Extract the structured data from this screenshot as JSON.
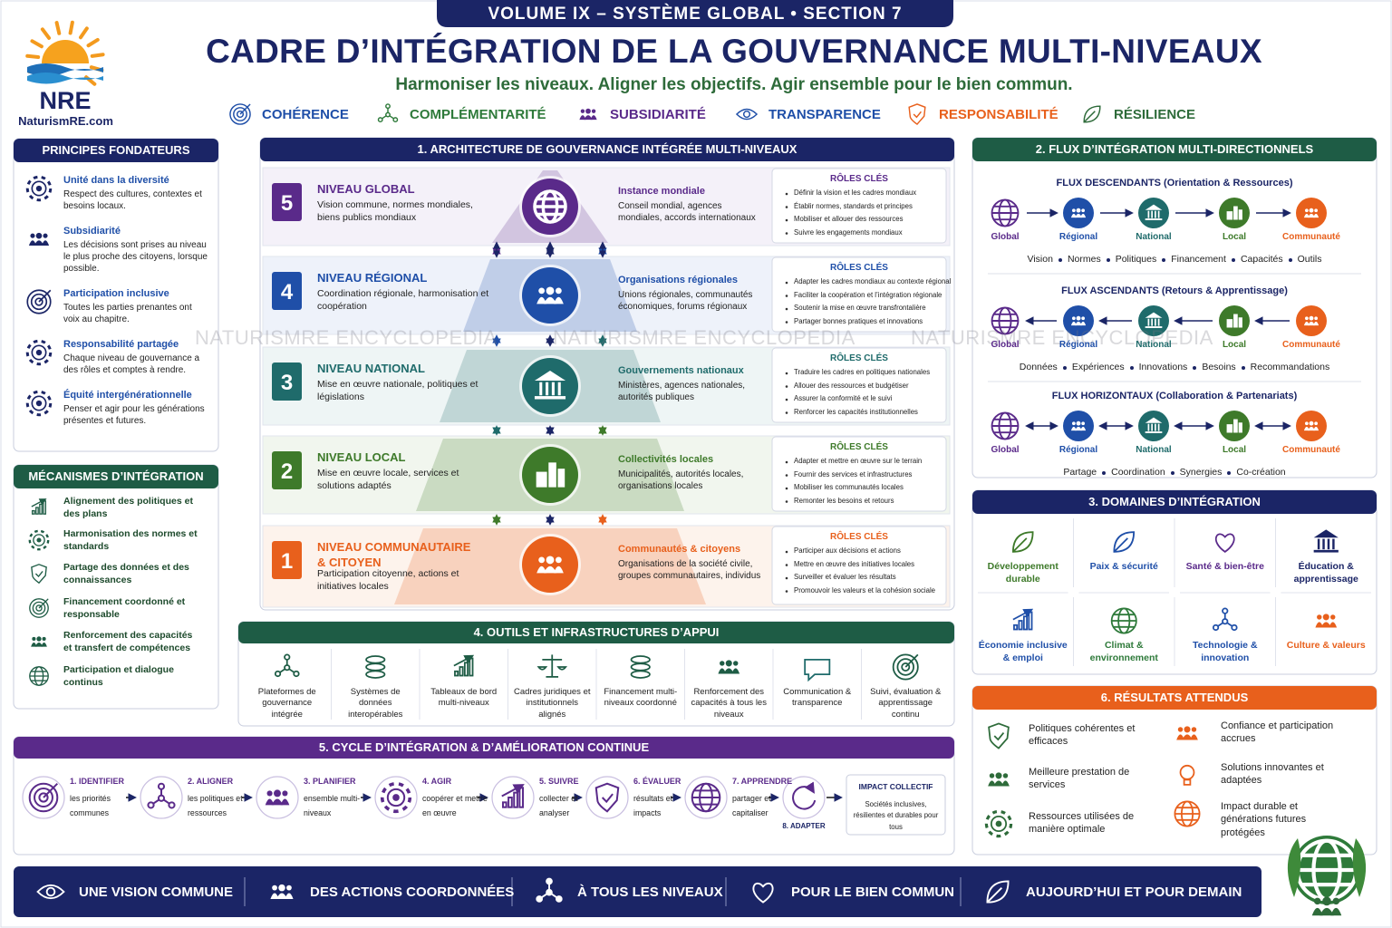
{
  "header": {
    "banner": "VOLUME IX – SYSTÈME GLOBAL • SECTION 7",
    "title": "CADRE D’INTÉGRATION DE LA GOUVERNANCE MULTI-NIVEAUX",
    "subtitle": "Harmoniser les niveaux. Aligner les objectifs. Agir ensemble pour le bien commun.",
    "logo": {
      "name": "NRE",
      "site": "NaturismRE.com"
    },
    "values": [
      "COHÉRENCE",
      "COMPLÉMENTARITÉ",
      "SUBSIDIARITÉ",
      "TRANSPARENCE",
      "RESPONSABILITÉ",
      "RÉSILIENCE"
    ]
  },
  "watermark": [
    "NATURISMRE ENCYCLOPEDIA",
    "NATURISMRE ENCYCLOPEDIA",
    "NATURISMRE ENCYCLOPEDIA"
  ],
  "principles": {
    "title": "PRINCIPES FONDATEURS",
    "items": [
      {
        "title": "Unité dans la diversité",
        "text": "Respect des cultures, contextes et besoins locaux."
      },
      {
        "title": "Subsidiarité",
        "text": "Les décisions sont prises au niveau le plus proche des citoyens, lorsque possible."
      },
      {
        "title": "Participation inclusive",
        "text": "Toutes les parties prenantes ont voix au chapitre."
      },
      {
        "title": "Responsabilité partagée",
        "text": "Chaque niveau de gouvernance a des rôles et comptes à rendre."
      },
      {
        "title": "Équité intergénérationnelle",
        "text": "Penser et agir pour les générations présentes et futures."
      }
    ]
  },
  "mechanisms": {
    "title": "MÉCANISMES D’INTÉGRATION",
    "items": [
      "Alignement des politiques et des plans",
      "Harmonisation des normes et standards",
      "Partage des données et des connaissances",
      "Financement coordonné et responsable",
      "Renforcement des capacités et transfert de compétences",
      "Participation et dialogue continus"
    ]
  },
  "section1": {
    "title": "1. ARCHITECTURE DE GOUVERNANCE INTÉGRÉE MULTI-NIVEAUX",
    "roles_heading": "RÔLES CLÉS",
    "levels": [
      {
        "number": 5,
        "name": "NIVEAU GLOBAL",
        "text": "Vision commune, normes mondiales, biens publics mondiaux",
        "actor": "Instance mondiale",
        "actor_text": "Conseil mondial, agences mondiales, accords internationaux",
        "roles": [
          "Définir la vision et les cadres mondiaux",
          "Établir normes, standards et principes",
          "Mobiliser et allouer des ressources",
          "Suivre les engagements mondiaux"
        ]
      },
      {
        "number": 4,
        "name": "NIVEAU RÉGIONAL",
        "text": "Coordination régionale, harmonisation et coopération",
        "actor": "Organisations régionales",
        "actor_text": "Unions régionales, communautés économiques, forums régionaux",
        "roles": [
          "Adapter les cadres mondiaux au contexte régional",
          "Faciliter la coopération et l’intégration régionale",
          "Soutenir la mise en œuvre transfrontalière",
          "Partager bonnes pratiques et innovations"
        ]
      },
      {
        "number": 3,
        "name": "NIVEAU NATIONAL",
        "text": "Mise en œuvre nationale, politiques et législations",
        "actor": "Gouvernements nationaux",
        "actor_text": "Ministères, agences nationales, autorités publiques",
        "roles": [
          "Traduire les cadres en politiques nationales",
          "Allouer des ressources et budgétiser",
          "Assurer la conformité et le suivi",
          "Renforcer les capacités institutionnelles"
        ]
      },
      {
        "number": 2,
        "name": "NIVEAU LOCAL",
        "text": "Mise en œuvre locale, services et solutions adaptés",
        "actor": "Collectivités locales",
        "actor_text": "Municipalités, autorités locales, organisations locales",
        "roles": [
          "Adapter et mettre en œuvre sur le terrain",
          "Fournir des services et infrastructures",
          "Mobiliser les communautés locales",
          "Remonter les besoins et retours"
        ]
      },
      {
        "number": 1,
        "name": "NIVEAU COMMUNAUTAIRE & CITOYEN",
        "text": "Participation citoyenne, actions et initiatives locales",
        "actor": "Communautés & citoyens",
        "actor_text": "Organisations de la société civile, groupes communautaires, individus",
        "roles": [
          "Participer aux décisions et actions",
          "Mettre en œuvre des initiatives locales",
          "Surveiller et évaluer les résultats",
          "Promouvoir les valeurs et la cohésion sociale"
        ]
      }
    ]
  },
  "section2": {
    "title": "2. FLUX D’INTÉGRATION MULTI-DIRECTIONNELS",
    "nodes": [
      "Global",
      "Régional",
      "National",
      "Local",
      "Communauté"
    ],
    "flows": [
      {
        "title": "FLUX DESCENDANTS (Orientation & Ressources)",
        "items": [
          "Vision",
          "Normes",
          "Politiques",
          "Financement",
          "Capacités",
          "Outils"
        ]
      },
      {
        "title": "FLUX ASCENDANTS (Retours & Apprentissage)",
        "items": [
          "Données",
          "Expériences",
          "Innovations",
          "Besoins",
          "Recommandations"
        ]
      },
      {
        "title": "FLUX HORIZONTAUX (Collaboration & Partenariats)",
        "items": [
          "Partage",
          "Coordination",
          "Synergies",
          "Co-création"
        ]
      }
    ]
  },
  "section3": {
    "title": "3. DOMAINES D’INTÉGRATION",
    "domains": [
      "Développement durable",
      "Paix & sécurité",
      "Santé & bien-être",
      "Éducation & apprentissage",
      "Économie inclusive & emploi",
      "Climat & environnement",
      "Technologie & innovation",
      "Culture & valeurs"
    ]
  },
  "section4": {
    "title": "4. OUTILS ET INFRASTRUCTURES D’APPUI",
    "tools": [
      "Plateformes de gouvernance intégrée",
      "Systèmes de données interopérables",
      "Tableaux de bord multi-niveaux",
      "Cadres juridiques et institutionnels alignés",
      "Financement multi-niveaux coordonné",
      "Renforcement des capacités à tous les niveaux",
      "Communication & transparence",
      "Suivi, évaluation & apprentissage continu"
    ]
  },
  "section5": {
    "title": "5. CYCLE D’INTÉGRATION & D’AMÉLIORATION CONTINUE",
    "steps": [
      {
        "label": "1. IDENTIFIER",
        "text": "les priorités communes"
      },
      {
        "label": "2. ALIGNER",
        "text": "les politiques et ressources"
      },
      {
        "label": "3. PLANIFIER",
        "text": "ensemble multi-niveaux"
      },
      {
        "label": "4. AGIR",
        "text": "coopérer et mettre en œuvre"
      },
      {
        "label": "5. SUIVRE",
        "text": "collecter et analyser"
      },
      {
        "label": "6. ÉVALUER",
        "text": "résultats et impacts"
      },
      {
        "label": "7. APPRENDRE",
        "text": "partager et capitaliser"
      }
    ],
    "adapt": "8. ADAPTER",
    "impact": {
      "title": "IMPACT COLLECTIF",
      "text": "Sociétés inclusives, résilientes et durables pour tous"
    }
  },
  "section6": {
    "title": "6. RÉSULTATS ATTENDUS",
    "results": [
      "Politiques cohérentes et efficaces",
      "Meilleure prestation de services",
      "Ressources utilisées de manière optimale",
      "Confiance et participation accrues",
      "Solutions innovantes et adaptées",
      "Impact durable et générations futures protégées"
    ]
  },
  "footer": [
    "UNE VISION COMMUNE",
    "DES ACTIONS COORDONNÉES",
    "À TOUS LES NIVEAUX",
    "POUR LE BIEN COMMUN",
    "AUJOURD’HUI ET POUR DEMAIN"
  ]
}
